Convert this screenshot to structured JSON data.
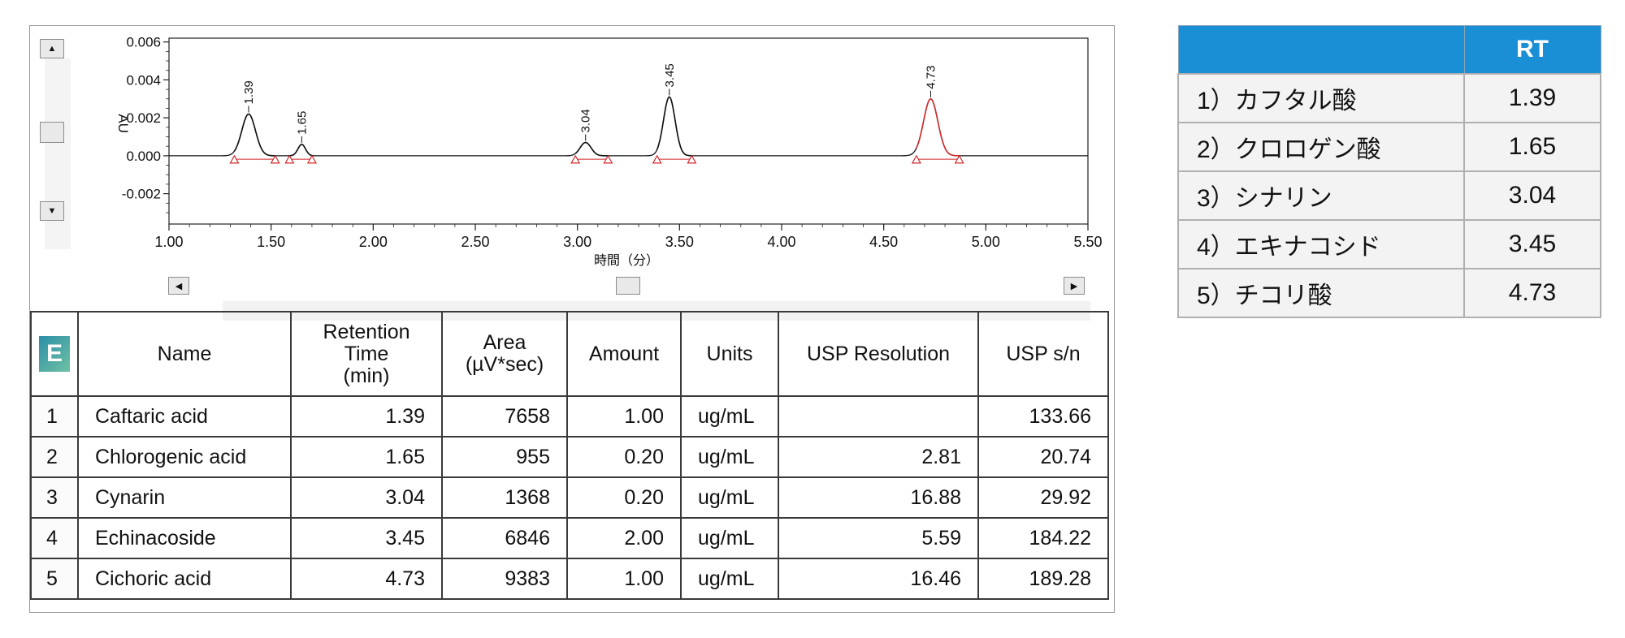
{
  "chart_data": {
    "type": "line",
    "title": "",
    "xlabel": "時間（分）",
    "ylabel": "AU",
    "xlim": [
      1.0,
      5.5
    ],
    "ylim": [
      -0.0036,
      0.0062
    ],
    "x_ticks": [
      "1.00",
      "1.50",
      "2.00",
      "2.50",
      "3.00",
      "3.50",
      "4.00",
      "4.50",
      "5.00",
      "5.50"
    ],
    "y_ticks": [
      "0.006",
      "0.004",
      "0.002",
      "0.000",
      "-0.002"
    ],
    "peaks": [
      {
        "rt": 1.39,
        "label": "1.39",
        "height": 0.0022,
        "color": "#111111",
        "start": 1.32,
        "end": 1.52
      },
      {
        "rt": 1.65,
        "label": "1.65",
        "height": 0.0006,
        "color": "#111111",
        "start": 1.59,
        "end": 1.7
      },
      {
        "rt": 3.04,
        "label": "3.04",
        "height": 0.0007,
        "color": "#111111",
        "start": 2.99,
        "end": 3.15
      },
      {
        "rt": 3.45,
        "label": "3.45",
        "height": 0.0031,
        "color": "#111111",
        "start": 3.39,
        "end": 3.56
      },
      {
        "rt": 4.73,
        "label": "4.73",
        "height": 0.003,
        "color": "#d0282a",
        "start": 4.66,
        "end": 4.87
      }
    ],
    "marker_color": "#d0282a",
    "baseline": 0.0
  },
  "results_table": {
    "header_icon": "E",
    "columns": [
      "Name",
      "Retention Time (min)",
      "Area (µV*sec)",
      "Amount",
      "Units",
      "USP Resolution",
      "USP s/n"
    ],
    "column_lines": [
      [
        "Name"
      ],
      [
        "Retention",
        "Time",
        "(min)"
      ],
      [
        "Area",
        "(µV*sec)"
      ],
      [
        "Amount"
      ],
      [
        "Units"
      ],
      [
        "USP Resolution"
      ],
      [
        "USP s/n"
      ]
    ],
    "rows": [
      {
        "idx": "1",
        "name": "Caftaric acid",
        "rt": "1.39",
        "area": "7658",
        "amount": "1.00",
        "units": "ug/mL",
        "res": "",
        "sn": "133.66"
      },
      {
        "idx": "2",
        "name": "Chlorogenic acid",
        "rt": "1.65",
        "area": "955",
        "amount": "0.20",
        "units": "ug/mL",
        "res": "2.81",
        "sn": "20.74"
      },
      {
        "idx": "3",
        "name": "Cynarin",
        "rt": "3.04",
        "area": "1368",
        "amount": "0.20",
        "units": "ug/mL",
        "res": "16.88",
        "sn": "29.92"
      },
      {
        "idx": "4",
        "name": "Echinacoside",
        "rt": "3.45",
        "area": "6846",
        "amount": "2.00",
        "units": "ug/mL",
        "res": "5.59",
        "sn": "184.22"
      },
      {
        "idx": "5",
        "name": "Cichoric acid",
        "rt": "4.73",
        "area": "9383",
        "amount": "1.00",
        "units": "ug/mL",
        "res": "16.46",
        "sn": "189.28"
      }
    ]
  },
  "rt_table": {
    "header_blank": "",
    "header_rt": "RT",
    "header_color": "#1a8fd6",
    "rows": [
      {
        "name": "1）カフタル酸",
        "rt": "1.39"
      },
      {
        "name": "2）クロロゲン酸",
        "rt": "1.65"
      },
      {
        "name": "3）シナリン",
        "rt": "3.04"
      },
      {
        "name": "4）エキナコシド",
        "rt": "3.45"
      },
      {
        "name": "5）チコリ酸",
        "rt": "4.73"
      }
    ]
  },
  "controls": {
    "up_arrow": "▲",
    "down_arrow": "▼",
    "left_arrow": "◀",
    "right_arrow": "▶"
  }
}
